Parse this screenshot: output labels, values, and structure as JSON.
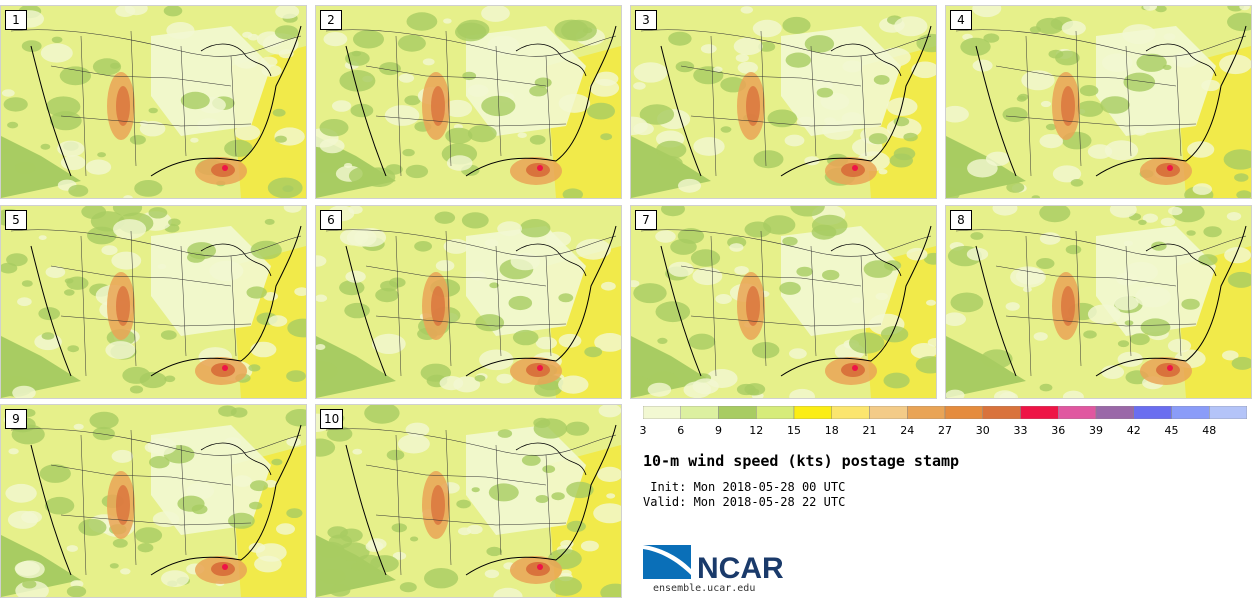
{
  "members": [
    "1",
    "2",
    "3",
    "4",
    "5",
    "6",
    "7",
    "8",
    "9",
    "10"
  ],
  "colorbar": {
    "ticks": [
      "3",
      "6",
      "9",
      "12",
      "15",
      "18",
      "21",
      "24",
      "27",
      "30",
      "33",
      "36",
      "39",
      "42",
      "45",
      "48"
    ],
    "colors": [
      "#f2f8d2",
      "#dcf0a0",
      "#a8cc62",
      "#d6ec7a",
      "#fbed14",
      "#fbe56e",
      "#f3cb88",
      "#e9a456",
      "#e58c3e",
      "#d9733c",
      "#ee1446",
      "#e057a0",
      "#9a68a8",
      "#6a6ef0",
      "#8a9cf8",
      "#b4c4f8"
    ]
  },
  "title": "10-m wind speed (kts) postage stamp",
  "init_line": " Init: Mon 2018-05-28 00 UTC",
  "valid_line": "Valid: Mon 2018-05-28 22 UTC",
  "logo": {
    "text": "NCAR",
    "color": "#1a3a6a",
    "swoosh": "#0a6fb8"
  },
  "site": "ensemble.ucar.edu"
}
